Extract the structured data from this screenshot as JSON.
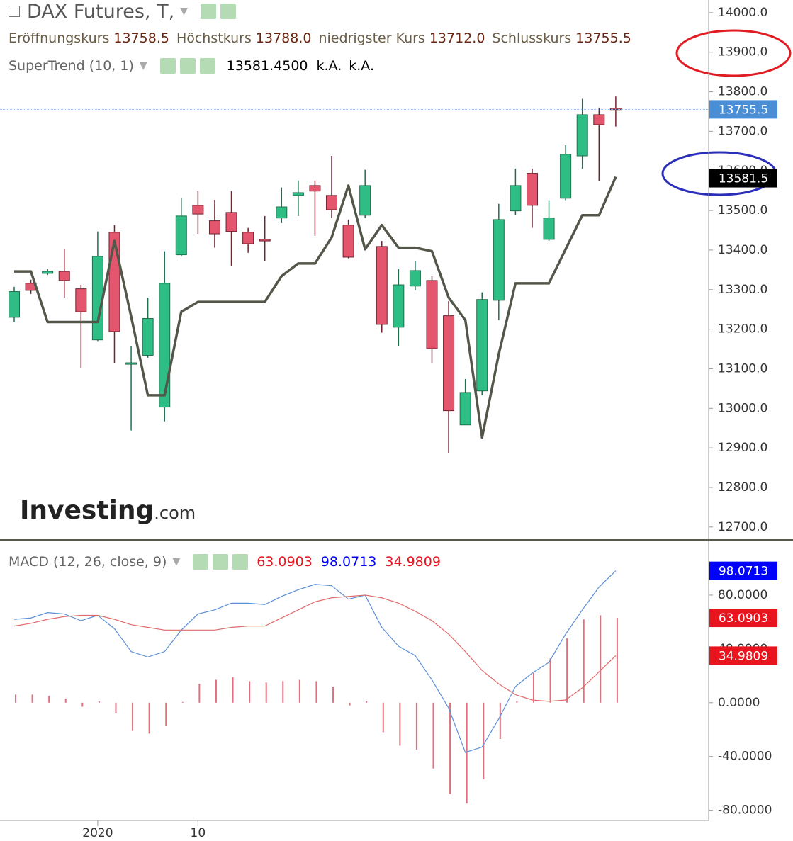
{
  "chart_data": [
    {
      "type": "candlestick",
      "title": "DAX Futures, T,",
      "legend": [
        {
          "name": "Eröffnungskurs",
          "value": "13758.5"
        },
        {
          "name": "Höchstkurs",
          "value": "13788.0"
        },
        {
          "name": "niedrigster Kurs",
          "value": "13712.0"
        },
        {
          "name": "Schlusskurs",
          "value": "13755.5"
        }
      ],
      "indicator_values": [
        "13581.4500",
        "k.A.",
        "k.A."
      ],
      "watermark": [
        "Investing",
        ".com"
      ],
      "categories": [
        null,
        null,
        null,
        null,
        null,
        "2020",
        null,
        null,
        null,
        null,
        null,
        "10",
        null,
        null,
        null,
        null,
        null,
        null,
        null,
        null,
        null,
        null,
        null,
        null,
        null,
        null,
        null,
        null,
        null,
        null,
        null,
        null,
        null,
        null,
        null,
        null,
        null
      ],
      "open": [
        13230,
        13316,
        13341,
        13346,
        13302,
        13173,
        13445,
        13112,
        13134,
        13003,
        13388,
        13513,
        13474,
        13495,
        13445,
        13427,
        13481,
        13538,
        13563,
        13538,
        13463,
        13488,
        13409,
        13205,
        13309,
        13323,
        13234,
        12958,
        13044,
        13273,
        13499,
        13594,
        13427,
        13531,
        13638,
        13742,
        13758.5
      ],
      "high": [
        13307,
        13325,
        13352,
        13402,
        13312,
        13447,
        13463,
        13158,
        13280,
        13397,
        13531,
        13549,
        13527,
        13549,
        13456,
        13486,
        13558,
        13576,
        13576,
        13638,
        13477,
        13603,
        13423,
        13352,
        13373,
        13334,
        13271,
        13074,
        13293,
        13517,
        13606,
        13606,
        13526,
        13665,
        13782,
        13760,
        13788
      ],
      "low": [
        13218,
        13289,
        13337,
        13280,
        13101,
        13170,
        13115,
        12944,
        13128,
        12967,
        13384,
        13441,
        13406,
        13359,
        13393,
        13373,
        13468,
        13486,
        13436,
        13481,
        13379,
        13481,
        13191,
        13158,
        13298,
        13115,
        12886,
        12958,
        13033,
        13223,
        13488,
        13456,
        13423,
        13526,
        13606,
        13574,
        13712
      ],
      "close": [
        13295,
        13298,
        13346,
        13323,
        13244,
        13384,
        13194,
        13115,
        13227,
        13316,
        13486,
        13491,
        13441,
        13447,
        13416,
        13423,
        13509,
        13545,
        13549,
        13502,
        13382,
        13563,
        13212,
        13312,
        13348,
        13151,
        12994,
        13040,
        13275,
        13477,
        13563,
        13513,
        13481,
        13642,
        13742,
        13717,
        13755.5
      ],
      "up_color": "#2ebd85",
      "down_color": "#e3566e",
      "series": [
        {
          "name": "SuperTrend (10, 1)",
          "color": "#53574a",
          "values": [
            13346,
            13346,
            13218,
            13218,
            13218,
            13218,
            13423,
            13232,
            13033,
            13033,
            13244,
            13269,
            13269,
            13269,
            13269,
            13269,
            13334,
            13366,
            13366,
            13432,
            13563,
            13402,
            13463,
            13406,
            13406,
            13397,
            13280,
            13223,
            12926,
            13137,
            13316,
            13316,
            13316,
            13402,
            13488,
            13488,
            13585
          ]
        }
      ],
      "ylim": [
        12671,
        14032
      ],
      "yticks": [
        {
          "value": 12700,
          "label": "12700.0"
        },
        {
          "value": 12800,
          "label": "12800.0"
        },
        {
          "value": 12900,
          "label": "12900.0"
        },
        {
          "value": 13000,
          "label": "13000.0"
        },
        {
          "value": 13100,
          "label": "13100.0"
        },
        {
          "value": 13200,
          "label": "13200.0"
        },
        {
          "value": 13300,
          "label": "13300.0"
        },
        {
          "value": 13400,
          "label": "13400.0"
        },
        {
          "value": 13500,
          "label": "13500.0"
        },
        {
          "value": 13600,
          "label": "13600.0"
        },
        {
          "value": 13700,
          "label": "13700.0"
        },
        {
          "value": 13800,
          "label": "13800.0"
        },
        {
          "value": 13900,
          "label": "13900.0"
        },
        {
          "value": 14000,
          "label": "14000.0"
        }
      ],
      "tags": [
        {
          "value": 13755.5,
          "label": "13755.5",
          "color": "#4a8fd6"
        },
        {
          "value": 13581.5,
          "label": "13581.5",
          "color": "#000000"
        }
      ],
      "grid": false
    },
    {
      "type": "macd",
      "title": "MACD (12, 26, close, 9)",
      "series": [
        {
          "kind": "bar",
          "color": "#e0707e",
          "label_color": "#e8141e",
          "value_label": "63.0903",
          "values": [
            6,
            6,
            5,
            3,
            -3,
            1,
            -8,
            -21,
            -23,
            -17,
            0.5,
            14,
            17,
            19,
            16,
            15,
            16,
            17,
            16,
            12,
            -2,
            1,
            -22,
            -32,
            -35,
            -49,
            -68,
            -75,
            -57,
            -27,
            1,
            22,
            33,
            48,
            62,
            65,
            63.0903
          ]
        },
        {
          "kind": "line",
          "color": "#5b8fd8",
          "label_color": "#0000ff",
          "value_label": "98.0713",
          "values": [
            62,
            63,
            67,
            66,
            61,
            65,
            55,
            38,
            34,
            38,
            54,
            66,
            69,
            74,
            74,
            73,
            79,
            84,
            88,
            87,
            77,
            80,
            56,
            42,
            35,
            17,
            -4,
            -37,
            -33,
            -12,
            12,
            22,
            30,
            51,
            69,
            86,
            98.0713
          ]
        },
        {
          "kind": "line",
          "color": "#e06a6a",
          "label_color": "#e8141e",
          "value_label": "34.9809",
          "values": [
            57,
            59,
            62,
            64,
            65,
            65,
            62,
            58,
            56,
            54,
            54,
            54,
            54,
            56,
            57,
            57,
            63,
            69,
            75,
            78,
            79,
            80,
            78,
            74,
            68,
            61,
            51,
            38,
            24,
            14,
            6,
            2,
            1,
            2,
            11,
            23,
            34.9809
          ]
        }
      ],
      "ylim": [
        -86,
        119.5
      ],
      "yticks": [
        {
          "value": 80,
          "label": "80.0000"
        },
        {
          "value": 40,
          "label": "40.0000"
        },
        {
          "value": 0,
          "label": "0.0000"
        },
        {
          "value": -40,
          "label": "-40.0000"
        },
        {
          "value": -80,
          "label": "-80.0000"
        }
      ],
      "grid": false
    }
  ]
}
